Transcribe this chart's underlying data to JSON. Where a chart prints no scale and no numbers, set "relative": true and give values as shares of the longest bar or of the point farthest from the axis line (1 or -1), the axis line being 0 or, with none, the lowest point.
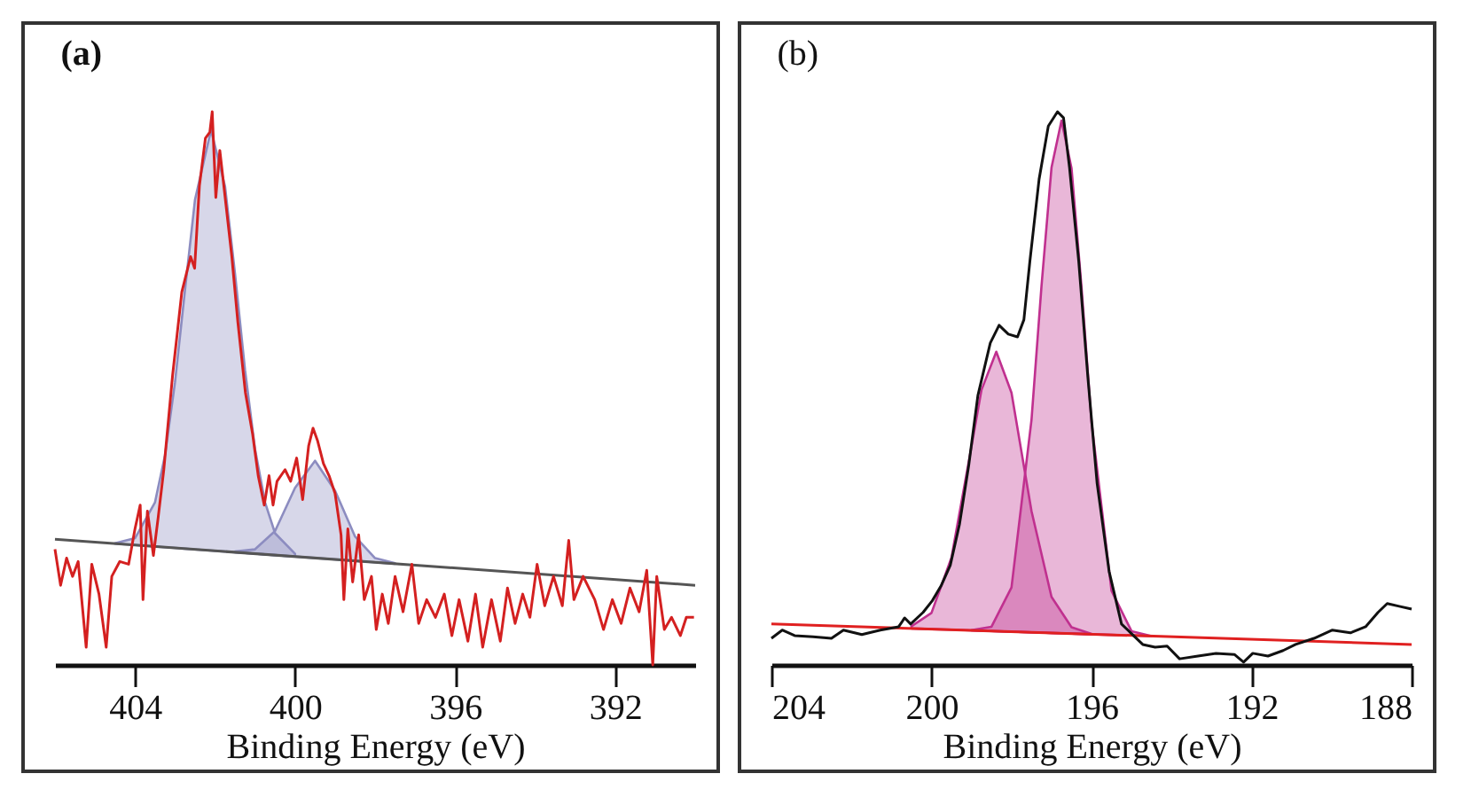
{
  "chart_data": [
    {
      "type": "line",
      "title": "(a)",
      "xlabel": "Binding Energy (eV)",
      "relative": true,
      "xlim": [
        406,
        390
      ],
      "xticks": [
        404,
        400,
        396,
        392
      ],
      "series": [
        {
          "type": "area",
          "color": "#8c8cc0",
          "x": [
            404.5,
            404.0,
            403.5,
            403.25,
            403.0,
            402.75,
            402.5,
            402.1,
            401.75,
            401.5,
            401.25,
            401.0,
            400.75,
            400.5,
            400.0
          ],
          "values": [
            0.22,
            0.229,
            0.294,
            0.379,
            0.511,
            0.678,
            0.841,
            0.967,
            0.865,
            0.707,
            0.533,
            0.39,
            0.294,
            0.238,
            0.201
          ]
        },
        {
          "type": "area",
          "color": "#8c8cc0",
          "x": [
            401.5,
            401.0,
            400.5,
            400.0,
            399.5,
            399.0,
            398.5,
            398.0,
            397.5
          ],
          "values": [
            0.205,
            0.209,
            0.242,
            0.32,
            0.369,
            0.315,
            0.232,
            0.193,
            0.184
          ]
        },
        {
          "color": "#555555",
          "x": [
            406,
            390
          ],
          "values": [
            0.227,
            0.144
          ]
        },
        {
          "color": "#d42020",
          "x": [
            406.0,
            405.86,
            405.71,
            405.56,
            405.42,
            405.22,
            405.08,
            404.9,
            404.72,
            404.58,
            404.38,
            404.16,
            404.0,
            403.87,
            403.8,
            403.69,
            403.54,
            403.42,
            403.28,
            403.06,
            402.83,
            402.61,
            402.51,
            402.39,
            402.24,
            402.13,
            402.07,
            401.98,
            401.88,
            401.73,
            401.58,
            401.43,
            401.24,
            401.06,
            400.92,
            400.77,
            400.65,
            400.55,
            400.45,
            400.25,
            400.11,
            399.96,
            399.81,
            399.66,
            399.55,
            399.44,
            399.29,
            399.15,
            399.0,
            398.85,
            398.78,
            398.68,
            398.56,
            398.41,
            398.27,
            398.09,
            397.97,
            397.82,
            397.67,
            397.5,
            397.3,
            397.08,
            396.91,
            396.71,
            396.49,
            396.27,
            396.08,
            395.9,
            395.68,
            395.49,
            395.31,
            395.09,
            394.87,
            394.69,
            394.5,
            394.31,
            394.13,
            393.95,
            393.76,
            393.54,
            393.32,
            393.16,
            393.03,
            392.8,
            392.51,
            392.29,
            392.07,
            391.85,
            391.63,
            391.4,
            391.21,
            391.06,
            390.96,
            390.77,
            390.59,
            390.37,
            390.22,
            390.03
          ],
          "values": [
            0.209,
            0.144,
            0.193,
            0.16,
            0.187,
            0.032,
            0.182,
            0.128,
            0.032,
            0.16,
            0.187,
            0.182,
            0.246,
            0.289,
            0.118,
            0.278,
            0.198,
            0.267,
            0.353,
            0.524,
            0.674,
            0.738,
            0.717,
            0.866,
            0.952,
            0.963,
            1.0,
            0.845,
            0.93,
            0.834,
            0.738,
            0.62,
            0.492,
            0.417,
            0.342,
            0.289,
            0.342,
            0.289,
            0.332,
            0.353,
            0.332,
            0.374,
            0.299,
            0.396,
            0.428,
            0.406,
            0.364,
            0.342,
            0.31,
            0.235,
            0.118,
            0.246,
            0.15,
            0.235,
            0.118,
            0.16,
            0.064,
            0.128,
            0.075,
            0.16,
            0.096,
            0.182,
            0.075,
            0.118,
            0.086,
            0.128,
            0.053,
            0.118,
            0.043,
            0.128,
            0.032,
            0.118,
            0.043,
            0.139,
            0.075,
            0.128,
            0.086,
            0.182,
            0.107,
            0.16,
            0.107,
            0.225,
            0.118,
            0.16,
            0.118,
            0.064,
            0.118,
            0.075,
            0.139,
            0.096,
            0.171,
            0.0,
            0.16,
            0.064,
            0.086,
            0.053,
            0.086,
            0.086
          ]
        }
      ]
    },
    {
      "type": "line",
      "title": "(b)",
      "xlabel": "Binding Energy (eV)",
      "relative": true,
      "xlim": [
        204,
        188
      ],
      "xticks": [
        204,
        200,
        196,
        192,
        188
      ],
      "series": [
        {
          "type": "area",
          "color": "#c0308f",
          "x": [
            200.5,
            200.0,
            199.5,
            199.0,
            198.75,
            198.38,
            198.0,
            197.5,
            197.0,
            196.5,
            196.0
          ],
          "values": [
            0.07,
            0.094,
            0.194,
            0.395,
            0.497,
            0.566,
            0.492,
            0.278,
            0.123,
            0.068,
            0.056
          ]
        },
        {
          "type": "area",
          "color": "#c0308f",
          "x": [
            199.0,
            198.5,
            198.0,
            197.5,
            197.25,
            197.0,
            196.75,
            196.5,
            196.25,
            196.0,
            195.5,
            195.0,
            194.5
          ],
          "values": [
            0.063,
            0.069,
            0.14,
            0.443,
            0.685,
            0.899,
            0.984,
            0.898,
            0.683,
            0.439,
            0.134,
            0.061,
            0.052
          ]
        },
        {
          "color": "#e02020",
          "x": [
            204,
            188
          ],
          "values": [
            0.074,
            0.037
          ]
        },
        {
          "color": "#111111",
          "x": [
            204.0,
            203.73,
            203.42,
            202.96,
            202.5,
            202.2,
            201.74,
            201.28,
            200.82,
            200.67,
            200.52,
            200.21,
            199.98,
            199.76,
            199.53,
            199.3,
            199.07,
            198.84,
            198.53,
            198.31,
            198.08,
            197.85,
            197.69,
            197.54,
            197.31,
            197.08,
            196.85,
            196.7,
            196.55,
            196.32,
            196.09,
            195.86,
            195.56,
            195.25,
            195.02,
            194.72,
            194.41,
            194.11,
            193.8,
            193.34,
            192.89,
            192.43,
            192.2,
            191.97,
            191.59,
            191.21,
            190.9,
            190.44,
            189.98,
            189.53,
            189.15,
            188.84,
            188.61,
            188.31,
            188.0
          ],
          "values": [
            0.048,
            0.063,
            0.053,
            0.051,
            0.048,
            0.063,
            0.055,
            0.063,
            0.069,
            0.085,
            0.074,
            0.095,
            0.116,
            0.143,
            0.18,
            0.254,
            0.36,
            0.487,
            0.582,
            0.614,
            0.598,
            0.593,
            0.624,
            0.73,
            0.878,
            0.974,
            1.0,
            0.989,
            0.899,
            0.73,
            0.519,
            0.328,
            0.169,
            0.074,
            0.058,
            0.037,
            0.032,
            0.034,
            0.011,
            0.016,
            0.021,
            0.019,
            0.005,
            0.021,
            0.016,
            0.026,
            0.037,
            0.048,
            0.063,
            0.058,
            0.069,
            0.095,
            0.111,
            0.106,
            0.101
          ]
        }
      ]
    }
  ]
}
